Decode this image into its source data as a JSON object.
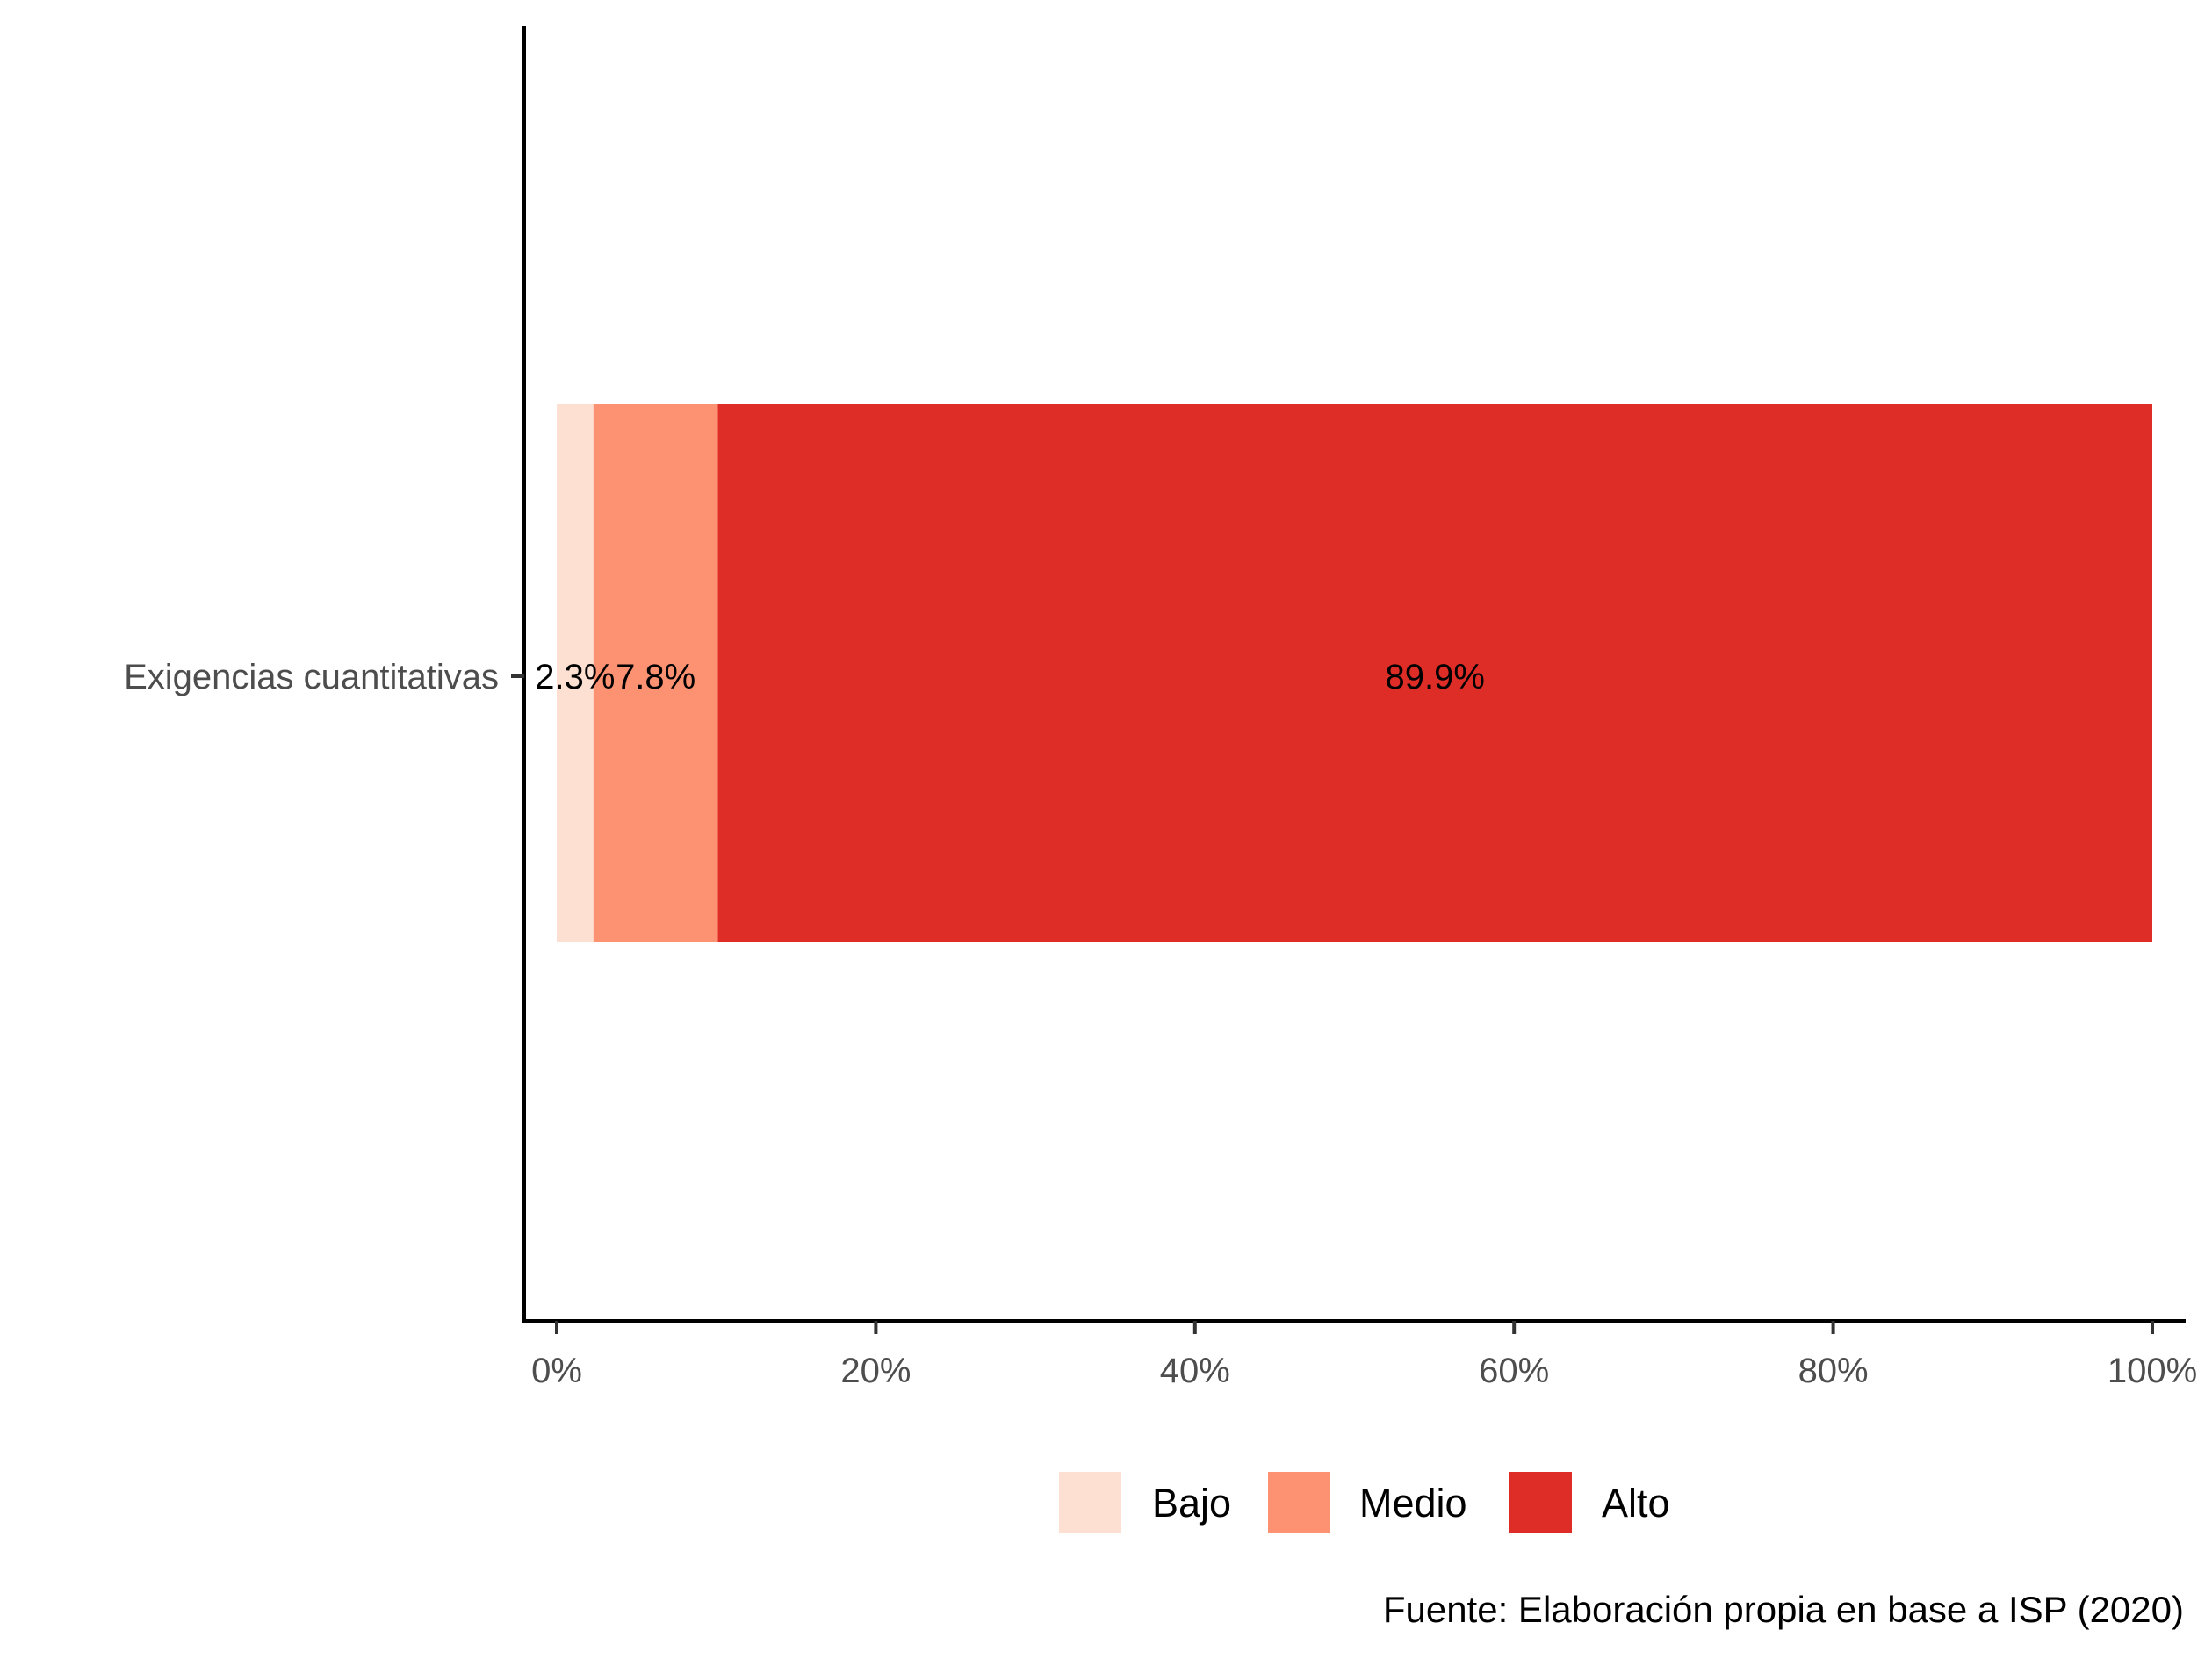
{
  "chart_data": {
    "type": "bar",
    "orientation": "horizontal",
    "stacked": true,
    "categories": [
      "Exigencias cuantitativas"
    ],
    "series": [
      {
        "name": "Bajo",
        "values": [
          2.3
        ],
        "label": "2.3%",
        "color": "#FEE0D2"
      },
      {
        "name": "Medio",
        "values": [
          7.8
        ],
        "label": "7.8%",
        "color": "#FC9272"
      },
      {
        "name": "Alto",
        "values": [
          89.9
        ],
        "label": "89.9%",
        "color": "#DE2D26"
      }
    ],
    "xlim": [
      0,
      100
    ],
    "x_ticks": [
      {
        "value": 0,
        "label": "0%"
      },
      {
        "value": 20,
        "label": "20%"
      },
      {
        "value": 40,
        "label": "40%"
      },
      {
        "value": 60,
        "label": "60%"
      },
      {
        "value": 80,
        "label": "80%"
      },
      {
        "value": 100,
        "label": "100%"
      }
    ],
    "grid": false,
    "legend_position": "bottom",
    "caption": "Fuente: Elaboración propia en base a ISP (2020)"
  }
}
